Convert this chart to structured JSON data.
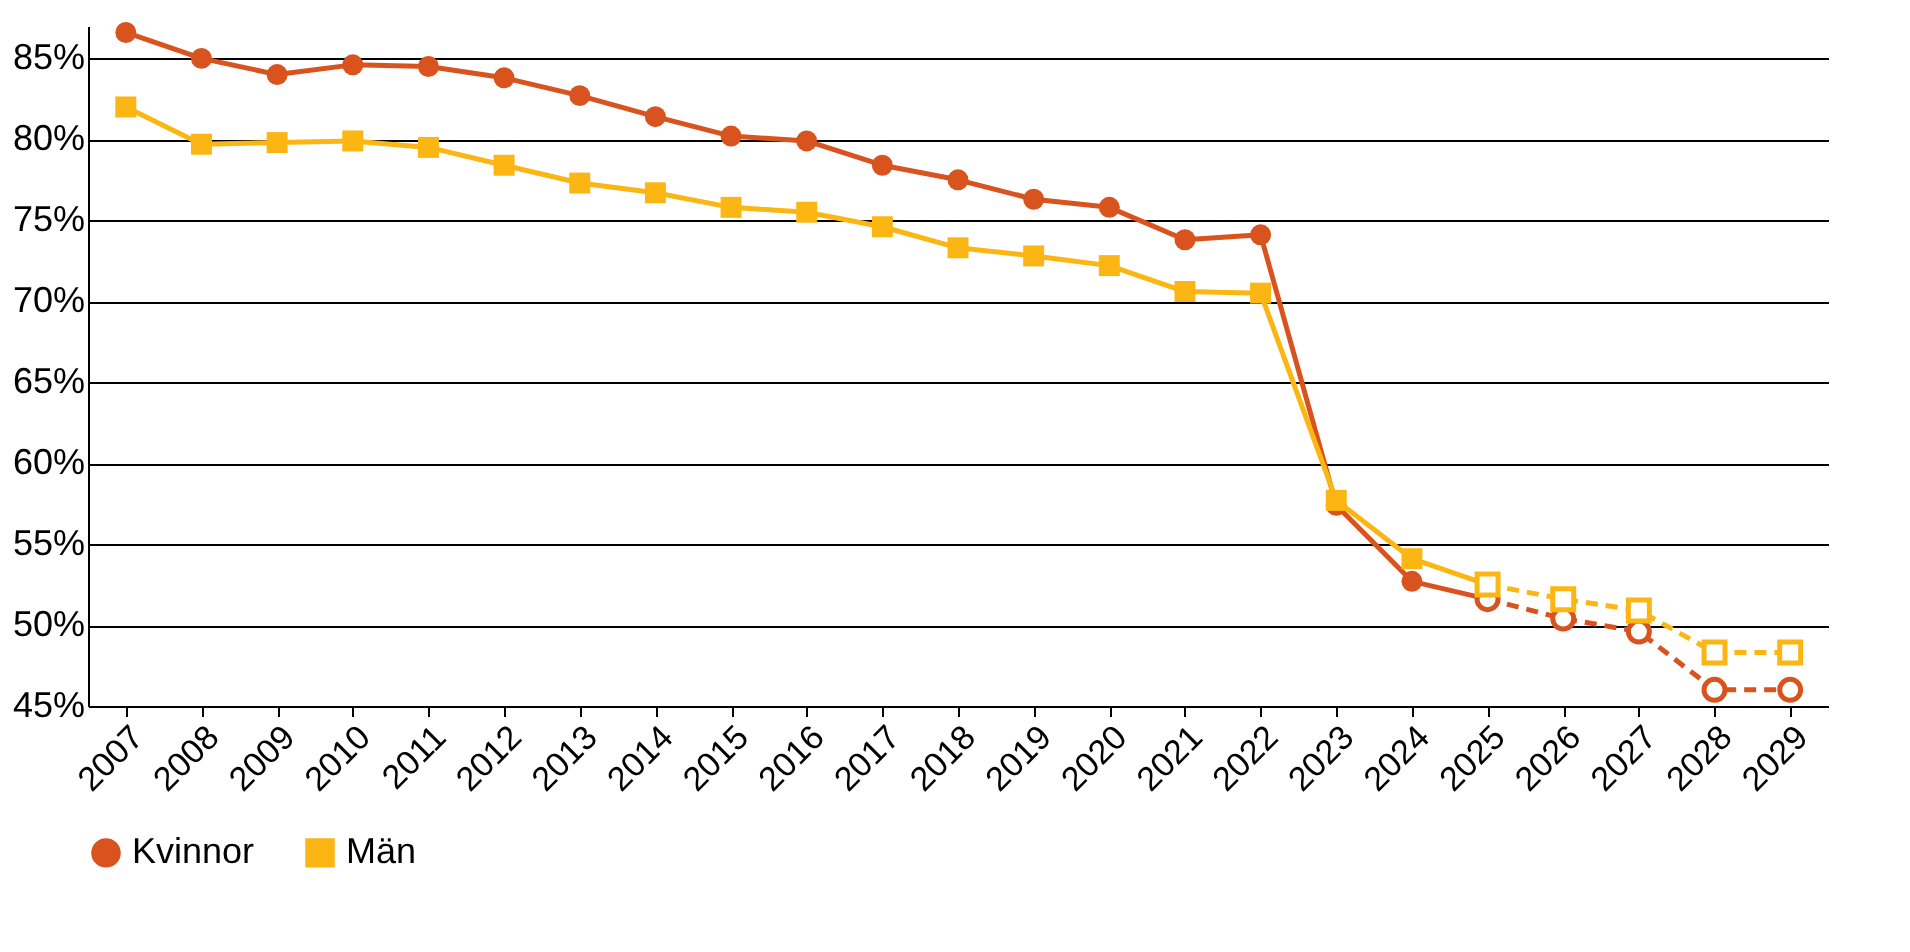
{
  "chart_data": {
    "type": "line",
    "categories": [
      "2007",
      "2008",
      "2009",
      "2010",
      "2011",
      "2012",
      "2013",
      "2014",
      "2015",
      "2016",
      "2017",
      "2018",
      "2019",
      "2020",
      "2021",
      "2022",
      "2023",
      "2024",
      "2025",
      "2026",
      "2027",
      "2028",
      "2029"
    ],
    "series": [
      {
        "name": "Kvinnor",
        "color": "#d9531e",
        "marker": "circle",
        "values": [
          86.6,
          85.0,
          84.0,
          84.6,
          84.5,
          83.8,
          82.7,
          81.4,
          80.2,
          79.9,
          78.4,
          77.5,
          76.3,
          75.8,
          73.8,
          74.1,
          57.4,
          52.7,
          51.6,
          null,
          null,
          null,
          null
        ]
      },
      {
        "name": "Män",
        "color": "#fbb614",
        "marker": "square",
        "values": [
          82.0,
          79.7,
          79.8,
          79.9,
          79.5,
          78.4,
          77.3,
          76.7,
          75.8,
          75.5,
          74.6,
          73.3,
          72.8,
          72.2,
          70.6,
          70.5,
          57.7,
          54.1,
          52.5,
          null,
          null,
          null,
          null
        ]
      },
      {
        "color": "#d9531e",
        "marker": "circle",
        "line_style": "dashed",
        "values": [
          null,
          null,
          null,
          null,
          null,
          null,
          null,
          null,
          null,
          null,
          null,
          null,
          null,
          null,
          null,
          null,
          null,
          null,
          51.6,
          50.4,
          49.6,
          46.0,
          46.0
        ]
      },
      {
        "color": "#fbb614",
        "marker": "square",
        "line_style": "dashed",
        "values": [
          null,
          null,
          null,
          null,
          null,
          null,
          null,
          null,
          null,
          null,
          null,
          null,
          null,
          null,
          null,
          null,
          null,
          null,
          52.5,
          51.6,
          50.9,
          48.3,
          48.3
        ]
      }
    ],
    "ylim": [
      45,
      87
    ],
    "yticks": [
      {
        "value": 45,
        "label": "45%"
      },
      {
        "value": 50,
        "label": "50%"
      },
      {
        "value": 55,
        "label": "55%"
      },
      {
        "value": 60,
        "label": "60%"
      },
      {
        "value": 65,
        "label": "65%"
      },
      {
        "value": 70,
        "label": "70%"
      },
      {
        "value": 75,
        "label": "75%"
      },
      {
        "value": 80,
        "label": "80%"
      },
      {
        "value": 85,
        "label": "85%"
      }
    ],
    "grid": "y",
    "legend": "bottom"
  }
}
